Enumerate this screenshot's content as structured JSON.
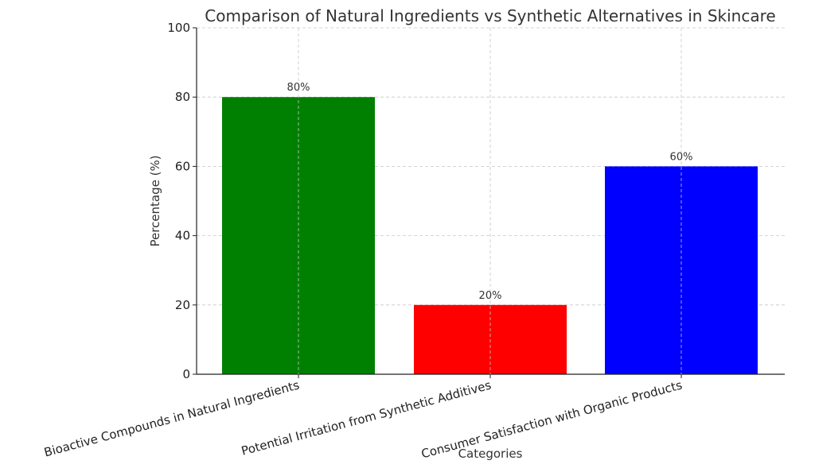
{
  "chart_data": {
    "type": "bar",
    "title": "Comparison of Natural Ingredients vs Synthetic Alternatives in Skincare",
    "xlabel": "Categories",
    "ylabel": "Percentage (%)",
    "categories": [
      "Bioactive Compounds in Natural Ingredients",
      "Potential Irritation from Synthetic Additives",
      "Consumer Satisfaction with Organic Products"
    ],
    "values": [
      80,
      20,
      60
    ],
    "data_labels": [
      "80%",
      "20%",
      "60%"
    ],
    "colors": [
      "#008000",
      "#ff0000",
      "#0000ff"
    ],
    "ylim": [
      0,
      100
    ],
    "yticks": [
      0,
      20,
      40,
      60,
      80,
      100
    ],
    "grid": true,
    "legend": "none"
  }
}
